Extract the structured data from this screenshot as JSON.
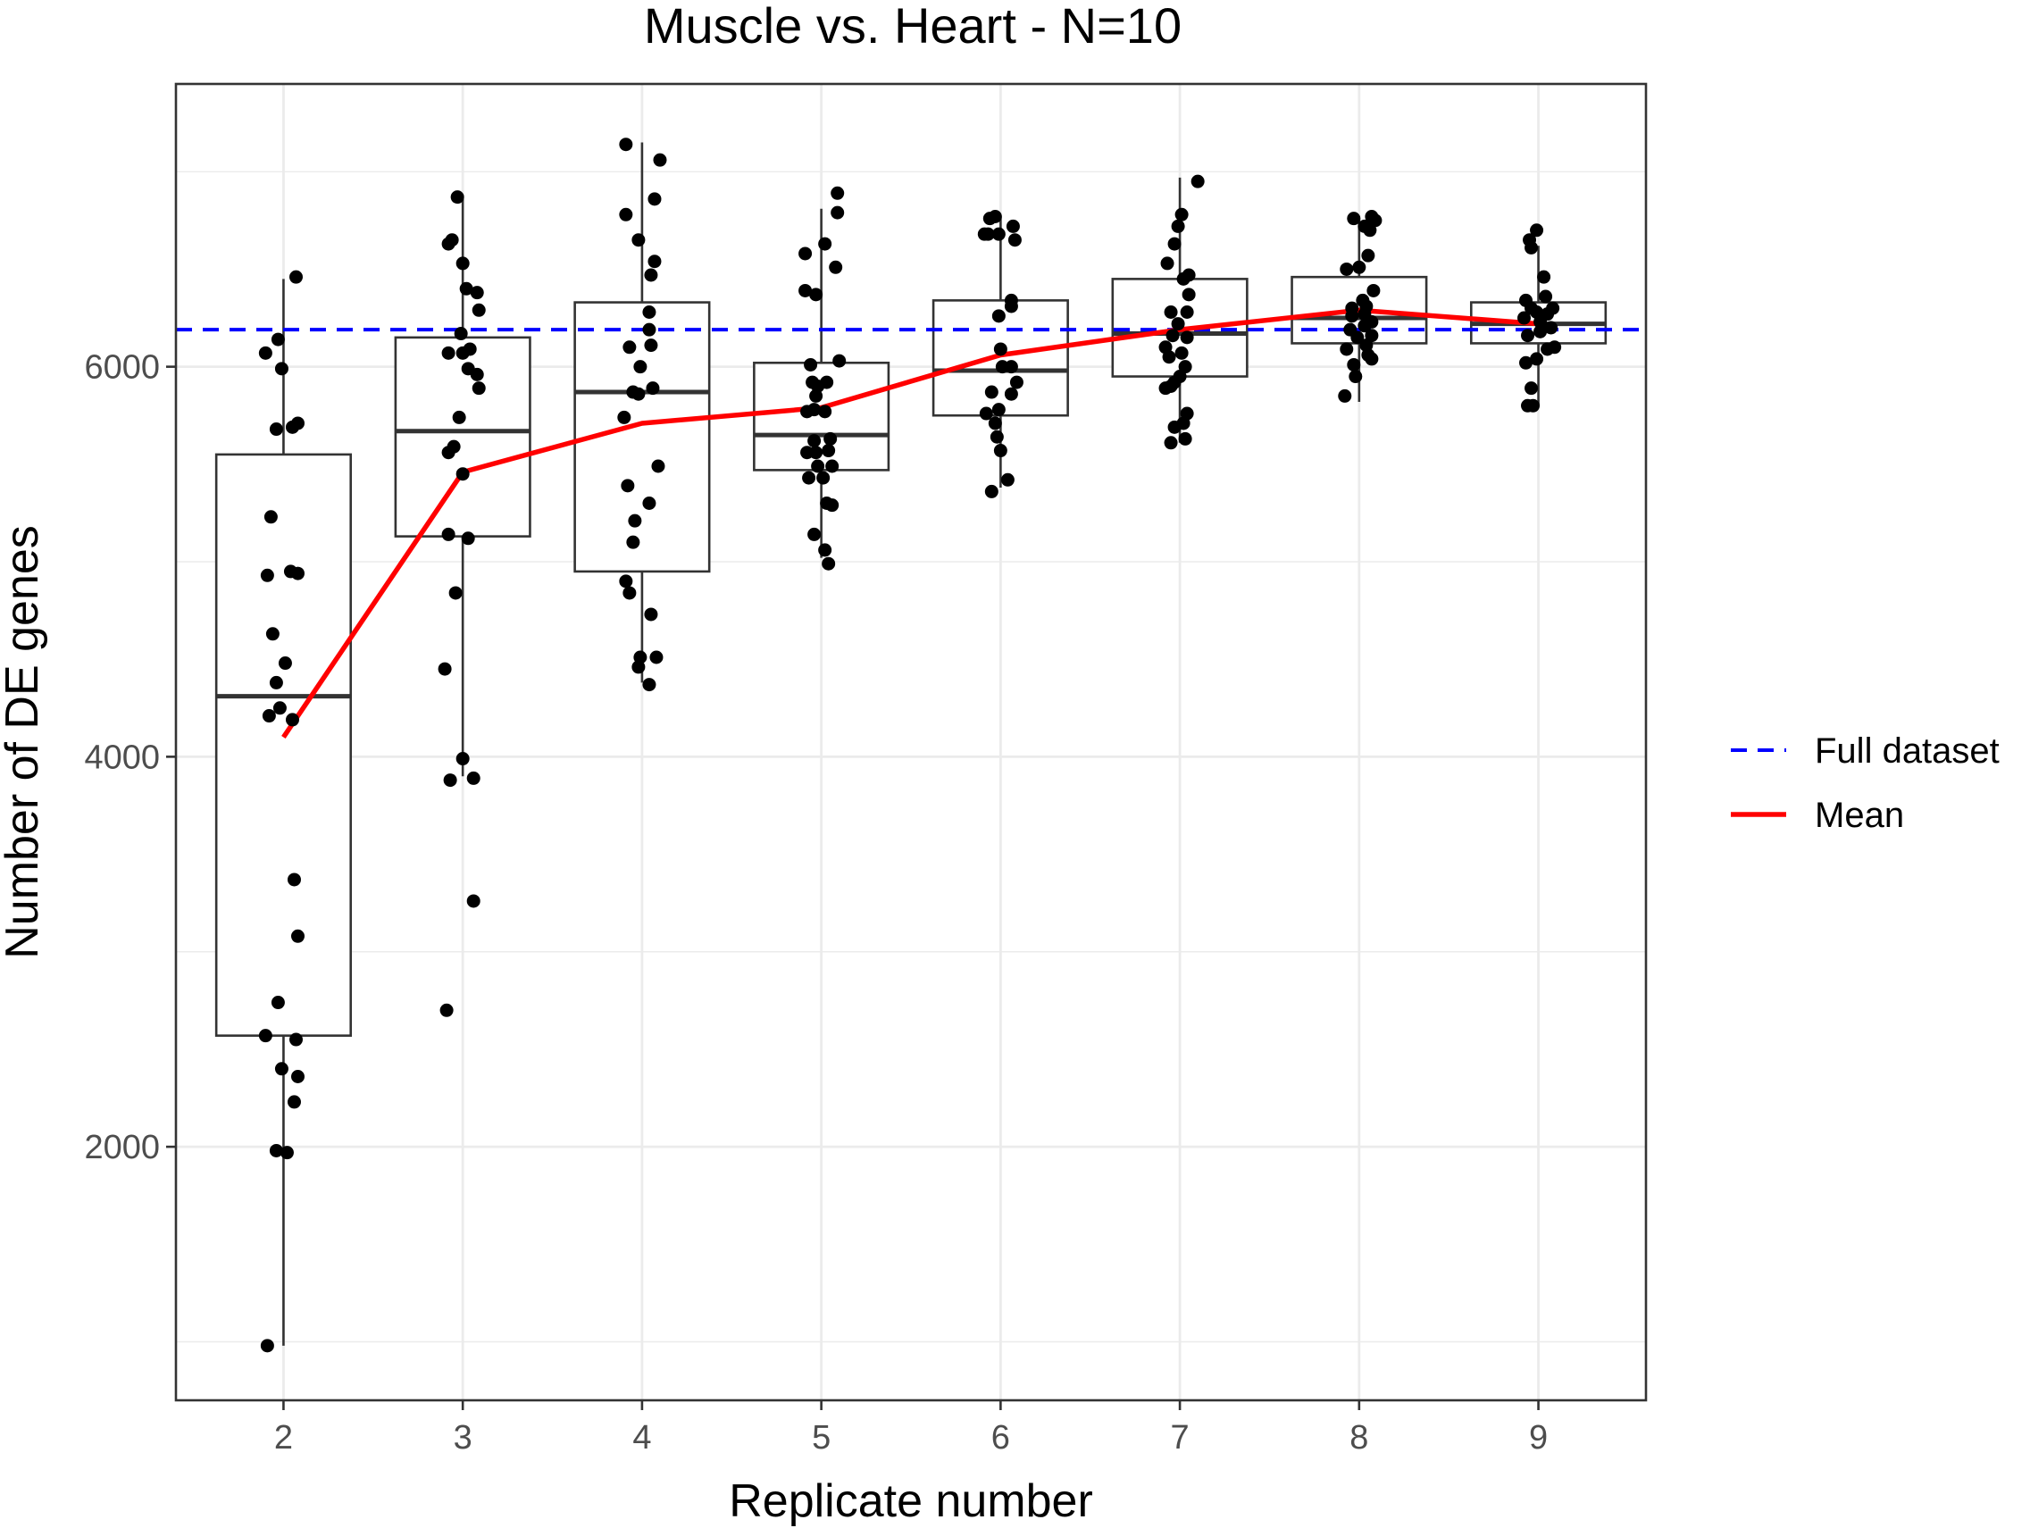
{
  "chart_data": {
    "type": "box",
    "title": "Muscle vs. Heart - N=10",
    "xlabel": "Replicate number",
    "ylabel": "Number of DE genes",
    "categories": [
      "2",
      "3",
      "4",
      "5",
      "6",
      "7",
      "8",
      "9"
    ],
    "x_range": [
      1.4,
      9.6
    ],
    "ylim": [
      700,
      7450
    ],
    "y_ticks": [
      2000,
      4000,
      6000
    ],
    "y_tick_labels": [
      "2000",
      "4000",
      "6000"
    ],
    "grid": true,
    "legend_position": "right",
    "full_dataset_value": 6190,
    "legend": [
      {
        "label": "Full dataset",
        "style": "dashed",
        "color": "#0000ff"
      },
      {
        "label": "Mean",
        "style": "solid",
        "color": "#ff0000"
      }
    ],
    "mean": {
      "name": "Mean",
      "color": "#ff0000",
      "x": [
        2,
        3,
        4,
        5,
        6,
        7,
        8,
        9
      ],
      "y": [
        4100,
        5460,
        5710,
        5790,
        6060,
        6190,
        6290,
        6220
      ]
    },
    "boxes": [
      {
        "x": 2,
        "whisker_low": 980,
        "q1": 2570,
        "median": 4310,
        "q3": 5550,
        "whisker_high": 6450
      },
      {
        "x": 3,
        "whisker_low": 3900,
        "q1": 5130,
        "median": 5670,
        "q3": 6150,
        "whisker_high": 6880
      },
      {
        "x": 4,
        "whisker_low": 4380,
        "q1": 4950,
        "median": 5870,
        "q3": 6330,
        "whisker_high": 7150
      },
      {
        "x": 5,
        "whisker_low": 5020,
        "q1": 5470,
        "median": 5650,
        "q3": 6020,
        "whisker_high": 6810
      },
      {
        "x": 6,
        "whisker_low": 5380,
        "q1": 5750,
        "median": 5980,
        "q3": 6340,
        "whisker_high": 6770
      },
      {
        "x": 7,
        "whisker_low": 5610,
        "q1": 5950,
        "median": 6170,
        "q3": 6450,
        "whisker_high": 6970
      },
      {
        "x": 8,
        "whisker_low": 5820,
        "q1": 6120,
        "median": 6250,
        "q3": 6460,
        "whisker_high": 6760
      },
      {
        "x": 9,
        "whisker_low": 5800,
        "q1": 6120,
        "median": 6220,
        "q3": 6330,
        "whisker_high": 6620
      }
    ],
    "points": [
      {
        "x": 1.91,
        "y": 980
      },
      {
        "x": 1.96,
        "y": 1980
      },
      {
        "x": 2.02,
        "y": 1970
      },
      {
        "x": 2.06,
        "y": 2230
      },
      {
        "x": 2.08,
        "y": 2360
      },
      {
        "x": 1.99,
        "y": 2400
      },
      {
        "x": 1.9,
        "y": 2570
      },
      {
        "x": 2.07,
        "y": 2550
      },
      {
        "x": 1.97,
        "y": 2740
      },
      {
        "x": 2.08,
        "y": 3080
      },
      {
        "x": 2.06,
        "y": 3370
      },
      {
        "x": 1.92,
        "y": 4210
      },
      {
        "x": 1.98,
        "y": 4250
      },
      {
        "x": 2.05,
        "y": 4190
      },
      {
        "x": 1.96,
        "y": 4380
      },
      {
        "x": 2.01,
        "y": 4480
      },
      {
        "x": 1.94,
        "y": 4630
      },
      {
        "x": 1.91,
        "y": 4930
      },
      {
        "x": 2.04,
        "y": 4950
      },
      {
        "x": 2.08,
        "y": 4940
      },
      {
        "x": 1.93,
        "y": 5230
      },
      {
        "x": 1.96,
        "y": 5680
      },
      {
        "x": 2.05,
        "y": 5690
      },
      {
        "x": 2.08,
        "y": 5710
      },
      {
        "x": 1.99,
        "y": 5990
      },
      {
        "x": 1.9,
        "y": 6070
      },
      {
        "x": 1.97,
        "y": 6140
      },
      {
        "x": 2.07,
        "y": 6460
      },
      {
        "x": 2.91,
        "y": 2700
      },
      {
        "x": 3.06,
        "y": 3260
      },
      {
        "x": 2.93,
        "y": 3880
      },
      {
        "x": 3.06,
        "y": 3890
      },
      {
        "x": 3.0,
        "y": 3990
      },
      {
        "x": 2.9,
        "y": 4450
      },
      {
        "x": 2.96,
        "y": 4840
      },
      {
        "x": 2.92,
        "y": 5140
      },
      {
        "x": 3.03,
        "y": 5120
      },
      {
        "x": 3.0,
        "y": 5450
      },
      {
        "x": 2.92,
        "y": 5560
      },
      {
        "x": 2.95,
        "y": 5590
      },
      {
        "x": 2.98,
        "y": 5740
      },
      {
        "x": 3.09,
        "y": 5890
      },
      {
        "x": 3.03,
        "y": 5990
      },
      {
        "x": 3.08,
        "y": 5960
      },
      {
        "x": 2.92,
        "y": 6070
      },
      {
        "x": 3.0,
        "y": 6070
      },
      {
        "x": 3.04,
        "y": 6090
      },
      {
        "x": 2.99,
        "y": 6170
      },
      {
        "x": 3.09,
        "y": 6290
      },
      {
        "x": 3.08,
        "y": 6380
      },
      {
        "x": 3.02,
        "y": 6400
      },
      {
        "x": 3.0,
        "y": 6530
      },
      {
        "x": 2.92,
        "y": 6630
      },
      {
        "x": 2.94,
        "y": 6650
      },
      {
        "x": 2.97,
        "y": 6870
      },
      {
        "x": 4.04,
        "y": 4370
      },
      {
        "x": 3.98,
        "y": 4460
      },
      {
        "x": 3.99,
        "y": 4510
      },
      {
        "x": 4.08,
        "y": 4510
      },
      {
        "x": 4.05,
        "y": 4730
      },
      {
        "x": 3.93,
        "y": 4840
      },
      {
        "x": 3.91,
        "y": 4900
      },
      {
        "x": 3.95,
        "y": 5100
      },
      {
        "x": 3.96,
        "y": 5210
      },
      {
        "x": 4.04,
        "y": 5300
      },
      {
        "x": 3.92,
        "y": 5390
      },
      {
        "x": 4.09,
        "y": 5490
      },
      {
        "x": 3.9,
        "y": 5740
      },
      {
        "x": 3.98,
        "y": 5860
      },
      {
        "x": 3.95,
        "y": 5870
      },
      {
        "x": 4.06,
        "y": 5890
      },
      {
        "x": 3.99,
        "y": 6000
      },
      {
        "x": 3.93,
        "y": 6100
      },
      {
        "x": 4.05,
        "y": 6110
      },
      {
        "x": 4.04,
        "y": 6190
      },
      {
        "x": 4.04,
        "y": 6280
      },
      {
        "x": 4.05,
        "y": 6470
      },
      {
        "x": 4.07,
        "y": 6540
      },
      {
        "x": 3.98,
        "y": 6650
      },
      {
        "x": 3.91,
        "y": 6780
      },
      {
        "x": 4.07,
        "y": 6860
      },
      {
        "x": 4.1,
        "y": 7060
      },
      {
        "x": 3.91,
        "y": 7140
      },
      {
        "x": 5.04,
        "y": 4990
      },
      {
        "x": 5.02,
        "y": 5060
      },
      {
        "x": 4.96,
        "y": 5140
      },
      {
        "x": 5.06,
        "y": 5290
      },
      {
        "x": 5.03,
        "y": 5300
      },
      {
        "x": 4.93,
        "y": 5430
      },
      {
        "x": 5.01,
        "y": 5430
      },
      {
        "x": 4.98,
        "y": 5490
      },
      {
        "x": 5.06,
        "y": 5490
      },
      {
        "x": 4.92,
        "y": 5560
      },
      {
        "x": 4.97,
        "y": 5560
      },
      {
        "x": 5.04,
        "y": 5570
      },
      {
        "x": 4.96,
        "y": 5620
      },
      {
        "x": 5.05,
        "y": 5630
      },
      {
        "x": 5.02,
        "y": 5770
      },
      {
        "x": 4.92,
        "y": 5770
      },
      {
        "x": 4.96,
        "y": 5780
      },
      {
        "x": 4.97,
        "y": 5850
      },
      {
        "x": 4.98,
        "y": 5900
      },
      {
        "x": 4.95,
        "y": 5920
      },
      {
        "x": 5.03,
        "y": 5920
      },
      {
        "x": 4.94,
        "y": 6010
      },
      {
        "x": 5.1,
        "y": 6030
      },
      {
        "x": 4.97,
        "y": 6370
      },
      {
        "x": 4.91,
        "y": 6390
      },
      {
        "x": 5.08,
        "y": 6510
      },
      {
        "x": 4.91,
        "y": 6580
      },
      {
        "x": 5.02,
        "y": 6630
      },
      {
        "x": 5.09,
        "y": 6790
      },
      {
        "x": 5.09,
        "y": 6890
      },
      {
        "x": 5.95,
        "y": 5360
      },
      {
        "x": 6.04,
        "y": 5420
      },
      {
        "x": 6.0,
        "y": 5570
      },
      {
        "x": 5.98,
        "y": 5640
      },
      {
        "x": 5.97,
        "y": 5710
      },
      {
        "x": 5.92,
        "y": 5760
      },
      {
        "x": 5.99,
        "y": 5780
      },
      {
        "x": 6.06,
        "y": 5860
      },
      {
        "x": 5.95,
        "y": 5870
      },
      {
        "x": 6.09,
        "y": 5920
      },
      {
        "x": 6.01,
        "y": 6000
      },
      {
        "x": 6.06,
        "y": 6000
      },
      {
        "x": 6.0,
        "y": 6090
      },
      {
        "x": 5.99,
        "y": 6260
      },
      {
        "x": 6.06,
        "y": 6310
      },
      {
        "x": 6.06,
        "y": 6340
      },
      {
        "x": 6.08,
        "y": 6650
      },
      {
        "x": 5.91,
        "y": 6680
      },
      {
        "x": 5.93,
        "y": 6680
      },
      {
        "x": 5.99,
        "y": 6680
      },
      {
        "x": 6.07,
        "y": 6720
      },
      {
        "x": 5.94,
        "y": 6760
      },
      {
        "x": 5.97,
        "y": 6770
      },
      {
        "x": 6.95,
        "y": 5610
      },
      {
        "x": 7.03,
        "y": 5630
      },
      {
        "x": 6.97,
        "y": 5690
      },
      {
        "x": 7.02,
        "y": 5710
      },
      {
        "x": 7.04,
        "y": 5760
      },
      {
        "x": 6.92,
        "y": 5890
      },
      {
        "x": 6.95,
        "y": 5900
      },
      {
        "x": 6.97,
        "y": 5920
      },
      {
        "x": 7.0,
        "y": 5950
      },
      {
        "x": 7.03,
        "y": 6000
      },
      {
        "x": 6.94,
        "y": 6050
      },
      {
        "x": 7.01,
        "y": 6070
      },
      {
        "x": 6.92,
        "y": 6100
      },
      {
        "x": 6.96,
        "y": 6160
      },
      {
        "x": 7.04,
        "y": 6150
      },
      {
        "x": 6.99,
        "y": 6220
      },
      {
        "x": 6.95,
        "y": 6280
      },
      {
        "x": 7.04,
        "y": 6280
      },
      {
        "x": 7.05,
        "y": 6370
      },
      {
        "x": 7.02,
        "y": 6450
      },
      {
        "x": 7.05,
        "y": 6470
      },
      {
        "x": 6.93,
        "y": 6530
      },
      {
        "x": 6.97,
        "y": 6630
      },
      {
        "x": 6.99,
        "y": 6720
      },
      {
        "x": 7.01,
        "y": 6780
      },
      {
        "x": 7.1,
        "y": 6950
      },
      {
        "x": 7.92,
        "y": 5850
      },
      {
        "x": 7.98,
        "y": 5950
      },
      {
        "x": 7.97,
        "y": 6010
      },
      {
        "x": 8.07,
        "y": 6040
      },
      {
        "x": 8.05,
        "y": 6060
      },
      {
        "x": 7.93,
        "y": 6090
      },
      {
        "x": 8.04,
        "y": 6110
      },
      {
        "x": 7.99,
        "y": 6150
      },
      {
        "x": 8.07,
        "y": 6160
      },
      {
        "x": 7.95,
        "y": 6190
      },
      {
        "x": 8.03,
        "y": 6210
      },
      {
        "x": 8.07,
        "y": 6230
      },
      {
        "x": 7.96,
        "y": 6260
      },
      {
        "x": 8.03,
        "y": 6270
      },
      {
        "x": 7.96,
        "y": 6300
      },
      {
        "x": 8.04,
        "y": 6310
      },
      {
        "x": 8.02,
        "y": 6340
      },
      {
        "x": 8.08,
        "y": 6390
      },
      {
        "x": 7.93,
        "y": 6500
      },
      {
        "x": 8.0,
        "y": 6510
      },
      {
        "x": 8.05,
        "y": 6570
      },
      {
        "x": 8.06,
        "y": 6700
      },
      {
        "x": 8.03,
        "y": 6720
      },
      {
        "x": 8.09,
        "y": 6750
      },
      {
        "x": 7.97,
        "y": 6760
      },
      {
        "x": 8.07,
        "y": 6770
      },
      {
        "x": 8.94,
        "y": 5800
      },
      {
        "x": 8.97,
        "y": 5800
      },
      {
        "x": 8.96,
        "y": 5890
      },
      {
        "x": 8.93,
        "y": 6020
      },
      {
        "x": 8.99,
        "y": 6040
      },
      {
        "x": 9.05,
        "y": 6090
      },
      {
        "x": 9.09,
        "y": 6100
      },
      {
        "x": 8.94,
        "y": 6160
      },
      {
        "x": 9.01,
        "y": 6180
      },
      {
        "x": 9.07,
        "y": 6200
      },
      {
        "x": 9.01,
        "y": 6230
      },
      {
        "x": 8.92,
        "y": 6250
      },
      {
        "x": 9.05,
        "y": 6270
      },
      {
        "x": 8.99,
        "y": 6280
      },
      {
        "x": 9.08,
        "y": 6300
      },
      {
        "x": 8.96,
        "y": 6300
      },
      {
        "x": 8.93,
        "y": 6340
      },
      {
        "x": 9.04,
        "y": 6360
      },
      {
        "x": 9.03,
        "y": 6460
      },
      {
        "x": 8.96,
        "y": 6610
      },
      {
        "x": 8.95,
        "y": 6650
      },
      {
        "x": 8.99,
        "y": 6700
      }
    ]
  }
}
